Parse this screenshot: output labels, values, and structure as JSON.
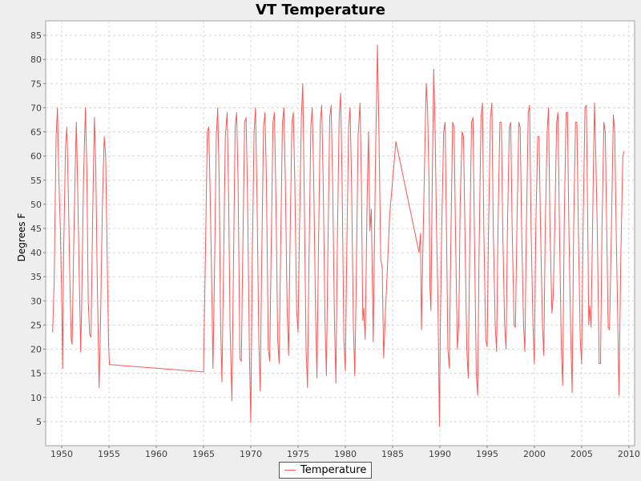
{
  "chart_data": {
    "type": "line",
    "title": "VT Temperature",
    "xlabel": "",
    "ylabel": "Degrees F",
    "xlim": [
      1948.3,
      2010.6
    ],
    "ylim": [
      0,
      88
    ],
    "xticks": [
      1950,
      1955,
      1960,
      1965,
      1970,
      1975,
      1980,
      1985,
      1990,
      1995,
      2000,
      2005,
      2010
    ],
    "yticks": [
      5,
      10,
      15,
      20,
      25,
      30,
      35,
      40,
      45,
      50,
      55,
      60,
      65,
      70,
      75,
      80,
      85
    ],
    "grid": true,
    "legend_position": "bottom",
    "colors": {
      "series": "#ff5555",
      "plot_background": "#ffffff",
      "grid": "#d8d8d8",
      "page_background": "#eeeeee"
    },
    "series": [
      {
        "name": "Temperature",
        "points": [
          [
            1949.04,
            23.5
          ],
          [
            1949.2,
            34
          ],
          [
            1949.4,
            64
          ],
          [
            1949.55,
            70
          ],
          [
            1949.7,
            55
          ],
          [
            1949.85,
            45
          ],
          [
            1950.0,
            30
          ],
          [
            1950.1,
            16
          ],
          [
            1950.2,
            40
          ],
          [
            1950.4,
            62
          ],
          [
            1950.55,
            66
          ],
          [
            1950.7,
            52
          ],
          [
            1950.85,
            35
          ],
          [
            1951.0,
            22
          ],
          [
            1951.1,
            21
          ],
          [
            1951.25,
            40
          ],
          [
            1951.45,
            60
          ],
          [
            1951.55,
            67
          ],
          [
            1951.7,
            52
          ],
          [
            1951.85,
            35
          ],
          [
            1952.0,
            19.5
          ],
          [
            1952.1,
            28
          ],
          [
            1952.3,
            55
          ],
          [
            1952.5,
            70
          ],
          [
            1952.65,
            58
          ],
          [
            1952.8,
            30
          ],
          [
            1952.95,
            23
          ],
          [
            1953.1,
            22.5
          ],
          [
            1953.25,
            45
          ],
          [
            1953.45,
            68
          ],
          [
            1953.6,
            58
          ],
          [
            1953.75,
            35
          ],
          [
            1953.95,
            12
          ],
          [
            1954.1,
            25
          ],
          [
            1954.3,
            50
          ],
          [
            1954.5,
            64
          ],
          [
            1954.65,
            60
          ],
          [
            1954.8,
            40
          ],
          [
            1954.95,
            21
          ],
          [
            1955.05,
            16.8
          ],
          [
            1965.0,
            15.3
          ],
          [
            1965.2,
            40
          ],
          [
            1965.4,
            65
          ],
          [
            1965.55,
            66
          ],
          [
            1965.7,
            52
          ],
          [
            1965.85,
            35
          ],
          [
            1966.0,
            16
          ],
          [
            1966.15,
            35
          ],
          [
            1966.35,
            64
          ],
          [
            1966.5,
            70
          ],
          [
            1966.65,
            55
          ],
          [
            1966.8,
            25
          ],
          [
            1966.95,
            13.2
          ],
          [
            1967.1,
            35
          ],
          [
            1967.3,
            64
          ],
          [
            1967.5,
            69
          ],
          [
            1967.65,
            52
          ],
          [
            1967.8,
            25
          ],
          [
            1968.0,
            9.3
          ],
          [
            1968.15,
            35
          ],
          [
            1968.35,
            66
          ],
          [
            1968.5,
            69
          ],
          [
            1968.65,
            55
          ],
          [
            1968.85,
            18
          ],
          [
            1969.0,
            17.5
          ],
          [
            1969.15,
            40
          ],
          [
            1969.35,
            67
          ],
          [
            1969.5,
            68
          ],
          [
            1969.65,
            52
          ],
          [
            1969.85,
            20
          ],
          [
            1970.0,
            4.8
          ],
          [
            1970.15,
            38
          ],
          [
            1970.35,
            65
          ],
          [
            1970.5,
            70
          ],
          [
            1970.65,
            52
          ],
          [
            1970.85,
            22
          ],
          [
            1971.0,
            11.3
          ],
          [
            1971.15,
            38
          ],
          [
            1971.35,
            66
          ],
          [
            1971.5,
            69
          ],
          [
            1971.65,
            55
          ],
          [
            1971.85,
            20
          ],
          [
            1972.0,
            17.5
          ],
          [
            1972.15,
            40
          ],
          [
            1972.35,
            67
          ],
          [
            1972.5,
            69
          ],
          [
            1972.65,
            52
          ],
          [
            1972.85,
            22
          ],
          [
            1973.0,
            17
          ],
          [
            1973.15,
            40
          ],
          [
            1973.35,
            67
          ],
          [
            1973.5,
            70
          ],
          [
            1973.65,
            55
          ],
          [
            1973.85,
            28
          ],
          [
            1974.0,
            18.7
          ],
          [
            1974.15,
            42
          ],
          [
            1974.35,
            67
          ],
          [
            1974.5,
            69
          ],
          [
            1974.65,
            55
          ],
          [
            1974.85,
            28
          ],
          [
            1975.0,
            23.5
          ],
          [
            1975.15,
            45
          ],
          [
            1975.35,
            68
          ],
          [
            1975.5,
            75
          ],
          [
            1975.65,
            52
          ],
          [
            1975.85,
            20
          ],
          [
            1976.0,
            12
          ],
          [
            1976.15,
            38
          ],
          [
            1976.35,
            66
          ],
          [
            1976.5,
            70
          ],
          [
            1976.65,
            55
          ],
          [
            1976.85,
            28
          ],
          [
            1977.0,
            14
          ],
          [
            1977.15,
            40
          ],
          [
            1977.35,
            67
          ],
          [
            1977.5,
            70.5
          ],
          [
            1977.65,
            55
          ],
          [
            1977.85,
            26
          ],
          [
            1978.0,
            14.5
          ],
          [
            1978.15,
            40
          ],
          [
            1978.35,
            68
          ],
          [
            1978.5,
            70.5
          ],
          [
            1978.65,
            55
          ],
          [
            1978.85,
            26
          ],
          [
            1979.0,
            13
          ],
          [
            1979.15,
            42
          ],
          [
            1979.35,
            68
          ],
          [
            1979.5,
            73
          ],
          [
            1979.65,
            55
          ],
          [
            1979.85,
            22
          ],
          [
            1980.0,
            15.5
          ],
          [
            1980.15,
            40
          ],
          [
            1980.35,
            66
          ],
          [
            1980.5,
            70
          ],
          [
            1980.65,
            55
          ],
          [
            1980.85,
            25
          ],
          [
            1981.0,
            14.5
          ],
          [
            1981.15,
            34
          ],
          [
            1981.35,
            64
          ],
          [
            1981.55,
            71
          ],
          [
            1981.7,
            55
          ],
          [
            1981.85,
            26
          ],
          [
            1981.95,
            28.5
          ],
          [
            1982.1,
            22
          ],
          [
            1982.3,
            50
          ],
          [
            1982.45,
            65
          ],
          [
            1982.6,
            44.5
          ],
          [
            1982.75,
            49
          ],
          [
            1982.95,
            21.5
          ],
          [
            1983.2,
            60
          ],
          [
            1983.4,
            83
          ],
          [
            1983.55,
            65
          ],
          [
            1983.75,
            38.5
          ],
          [
            1983.9,
            37
          ],
          [
            1984.05,
            18.2
          ],
          [
            1984.3,
            30
          ],
          [
            1984.7,
            48
          ],
          [
            1985.0,
            55
          ],
          [
            1985.35,
            63
          ],
          [
            1987.8,
            40
          ],
          [
            1987.95,
            44
          ],
          [
            1988.05,
            24
          ],
          [
            1988.2,
            40
          ],
          [
            1988.4,
            60
          ],
          [
            1988.55,
            75
          ],
          [
            1988.7,
            70
          ],
          [
            1988.85,
            55
          ],
          [
            1988.95,
            33
          ],
          [
            1989.05,
            28
          ],
          [
            1989.2,
            55
          ],
          [
            1989.35,
            78
          ],
          [
            1989.5,
            65
          ],
          [
            1989.65,
            45
          ],
          [
            1989.8,
            30
          ],
          [
            1989.95,
            4
          ],
          [
            1990.05,
            25
          ],
          [
            1990.2,
            45
          ],
          [
            1990.4,
            65
          ],
          [
            1990.55,
            67
          ],
          [
            1990.7,
            45
          ],
          [
            1990.85,
            20
          ],
          [
            1991.0,
            16
          ],
          [
            1991.15,
            40
          ],
          [
            1991.35,
            67
          ],
          [
            1991.5,
            66
          ],
          [
            1991.65,
            45
          ],
          [
            1991.85,
            20
          ],
          [
            1992.0,
            25
          ],
          [
            1992.15,
            50
          ],
          [
            1992.35,
            65
          ],
          [
            1992.5,
            64
          ],
          [
            1992.65,
            45
          ],
          [
            1992.85,
            20
          ],
          [
            1993.0,
            14
          ],
          [
            1993.15,
            40
          ],
          [
            1993.35,
            67
          ],
          [
            1993.5,
            68
          ],
          [
            1993.65,
            45
          ],
          [
            1993.85,
            15
          ],
          [
            1994.0,
            10.5
          ],
          [
            1994.15,
            40
          ],
          [
            1994.35,
            68
          ],
          [
            1994.5,
            71
          ],
          [
            1994.65,
            45
          ],
          [
            1994.85,
            22
          ],
          [
            1995.0,
            20.5
          ],
          [
            1995.15,
            45
          ],
          [
            1995.35,
            68
          ],
          [
            1995.5,
            71
          ],
          [
            1995.65,
            45
          ],
          [
            1995.85,
            25
          ],
          [
            1996.0,
            19.5
          ],
          [
            1996.15,
            45
          ],
          [
            1996.35,
            67
          ],
          [
            1996.5,
            67
          ],
          [
            1996.65,
            45
          ],
          [
            1996.85,
            25
          ],
          [
            1997.0,
            20
          ],
          [
            1997.15,
            45
          ],
          [
            1997.35,
            66
          ],
          [
            1997.5,
            67
          ],
          [
            1997.65,
            45
          ],
          [
            1997.85,
            25
          ],
          [
            1998.0,
            24.5
          ],
          [
            1998.15,
            45
          ],
          [
            1998.35,
            67
          ],
          [
            1998.5,
            66
          ],
          [
            1998.65,
            45
          ],
          [
            1998.85,
            25
          ],
          [
            1999.0,
            19.5
          ],
          [
            1999.15,
            45
          ],
          [
            1999.35,
            69
          ],
          [
            1999.5,
            70.5
          ],
          [
            1999.65,
            45
          ],
          [
            1999.85,
            25
          ],
          [
            2000.0,
            17
          ],
          [
            2000.15,
            45
          ],
          [
            2000.35,
            64
          ],
          [
            2000.5,
            64
          ],
          [
            2000.65,
            45
          ],
          [
            2000.85,
            25
          ],
          [
            2001.0,
            18.7
          ],
          [
            2001.15,
            45
          ],
          [
            2001.35,
            65
          ],
          [
            2001.5,
            70
          ],
          [
            2001.65,
            45
          ],
          [
            2001.85,
            27.5
          ],
          [
            2002.0,
            31
          ],
          [
            2002.15,
            45
          ],
          [
            2002.35,
            67
          ],
          [
            2002.5,
            69
          ],
          [
            2002.65,
            45
          ],
          [
            2002.85,
            20
          ],
          [
            2003.0,
            12.5
          ],
          [
            2003.15,
            45
          ],
          [
            2003.35,
            69
          ],
          [
            2003.5,
            69
          ],
          [
            2003.65,
            45
          ],
          [
            2003.85,
            22
          ],
          [
            2004.0,
            11
          ],
          [
            2004.15,
            45
          ],
          [
            2004.35,
            67
          ],
          [
            2004.5,
            67
          ],
          [
            2004.65,
            45
          ],
          [
            2004.85,
            22
          ],
          [
            2005.0,
            17
          ],
          [
            2005.15,
            45
          ],
          [
            2005.35,
            70
          ],
          [
            2005.5,
            70.5
          ],
          [
            2005.65,
            45
          ],
          [
            2005.75,
            25
          ],
          [
            2005.85,
            29
          ],
          [
            2006.0,
            24.5
          ],
          [
            2006.15,
            45
          ],
          [
            2006.35,
            71
          ],
          [
            2006.5,
            60
          ],
          [
            2006.65,
            45
          ],
          [
            2006.85,
            17
          ],
          [
            2007.0,
            17
          ],
          [
            2007.15,
            45
          ],
          [
            2007.35,
            67
          ],
          [
            2007.5,
            65
          ],
          [
            2007.65,
            45
          ],
          [
            2007.8,
            24.5
          ],
          [
            2007.95,
            24
          ],
          [
            2008.15,
            45
          ],
          [
            2008.35,
            68.5
          ],
          [
            2008.5,
            65
          ],
          [
            2008.65,
            45
          ],
          [
            2008.85,
            22
          ],
          [
            2008.95,
            10.5
          ],
          [
            2009.15,
            40
          ],
          [
            2009.35,
            60
          ],
          [
            2009.5,
            61
          ]
        ]
      }
    ]
  }
}
